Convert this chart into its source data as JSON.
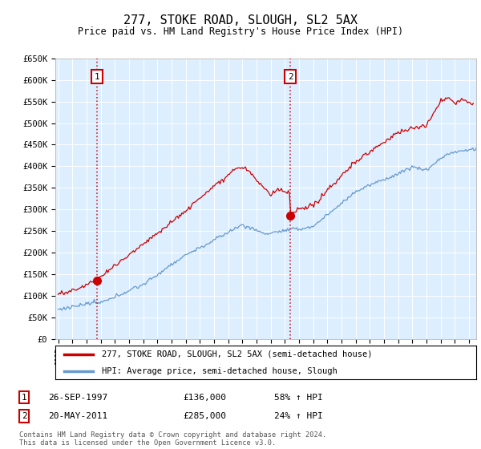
{
  "title": "277, STOKE ROAD, SLOUGH, SL2 5AX",
  "subtitle": "Price paid vs. HM Land Registry's House Price Index (HPI)",
  "legend_line1": "277, STOKE ROAD, SLOUGH, SL2 5AX (semi-detached house)",
  "legend_line2": "HPI: Average price, semi-detached house, Slough",
  "footnote": "Contains HM Land Registry data © Crown copyright and database right 2024.\nThis data is licensed under the Open Government Licence v3.0.",
  "annotation1": {
    "num": "1",
    "date": "26-SEP-1997",
    "price": "£136,000",
    "pct": "58% ↑ HPI"
  },
  "annotation2": {
    "num": "2",
    "date": "20-MAY-2011",
    "price": "£285,000",
    "pct": "24% ↑ HPI"
  },
  "point1_year": 1997.73,
  "point1_value": 136000,
  "point2_year": 2011.38,
  "point2_value": 285000,
  "red_color": "#cc0000",
  "blue_color": "#6699cc",
  "background_color": "#ddeeff",
  "ylim": [
    0,
    650000
  ],
  "xlim_start": 1994.8,
  "xlim_end": 2024.5,
  "ylabel_step": 50000
}
